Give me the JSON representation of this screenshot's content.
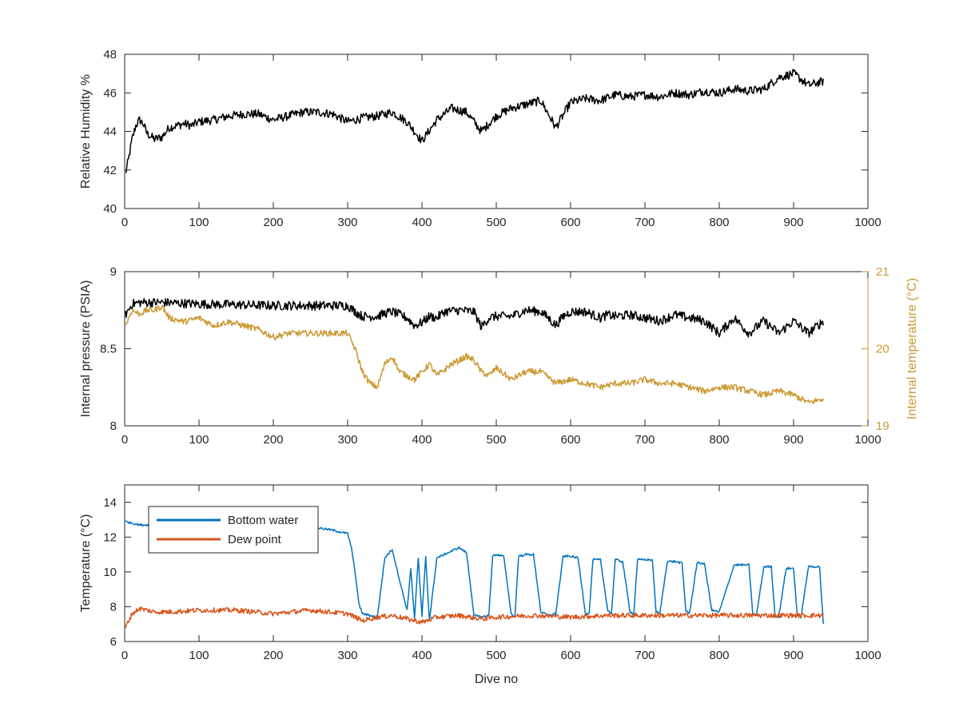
{
  "chart_data": [
    {
      "type": "line",
      "xlabel": "",
      "ylabel": "Relative Humidity %",
      "xlim": [
        0,
        1000
      ],
      "ylim": [
        40,
        48
      ],
      "xticks": [
        0,
        100,
        200,
        300,
        400,
        500,
        600,
        700,
        800,
        900,
        1000
      ],
      "yticks": [
        40,
        42,
        44,
        46,
        48
      ],
      "series": [
        {
          "color": "#000000",
          "x": [
            1,
            5,
            10,
            15,
            20,
            25,
            30,
            40,
            50,
            60,
            70,
            80,
            90,
            100,
            120,
            140,
            160,
            180,
            200,
            220,
            240,
            260,
            280,
            300,
            320,
            340,
            360,
            380,
            400,
            420,
            440,
            460,
            480,
            500,
            520,
            540,
            560,
            580,
            600,
            620,
            640,
            660,
            680,
            700,
            720,
            740,
            760,
            780,
            800,
            820,
            840,
            860,
            880,
            900,
            920,
            940
          ],
          "y": [
            41.8,
            42.5,
            43.6,
            44.3,
            44.6,
            44.4,
            43.9,
            43.6,
            43.7,
            44.2,
            44.3,
            44.4,
            44.3,
            44.5,
            44.6,
            44.8,
            44.9,
            44.9,
            44.6,
            44.8,
            45.0,
            45.0,
            44.9,
            44.5,
            44.7,
            44.8,
            45.0,
            44.5,
            43.5,
            44.6,
            45.2,
            45.0,
            44.0,
            44.8,
            45.2,
            45.4,
            45.6,
            44.2,
            45.5,
            45.7,
            45.6,
            45.9,
            45.8,
            45.9,
            45.8,
            46.0,
            45.9,
            46.1,
            46.0,
            46.2,
            46.1,
            46.2,
            46.8,
            47.0,
            46.4,
            46.6
          ],
          "noise": 0.45
        }
      ]
    },
    {
      "type": "line",
      "xlabel": "",
      "ylabel": "Internal pressure (PSIA)",
      "ylabel_right": "Internal temperature (°C)",
      "xlim": [
        0,
        1000
      ],
      "ylim": [
        8,
        9
      ],
      "ylim_right": [
        19,
        21
      ],
      "xticks": [
        0,
        100,
        200,
        300,
        400,
        500,
        600,
        700,
        800,
        900,
        1000
      ],
      "yticks": [
        8,
        8.5,
        9
      ],
      "yticks_right": [
        19,
        20,
        21
      ],
      "series": [
        {
          "axis": "left",
          "color": "#000000",
          "x": [
            1,
            10,
            20,
            50,
            100,
            200,
            300,
            310,
            320,
            330,
            340,
            350,
            360,
            370,
            380,
            390,
            400,
            410,
            420,
            430,
            450,
            470,
            480,
            490,
            500,
            520,
            540,
            560,
            570,
            580,
            590,
            600,
            620,
            640,
            650,
            660,
            680,
            700,
            720,
            740,
            760,
            780,
            800,
            820,
            840,
            860,
            880,
            900,
            920,
            940
          ],
          "y": [
            8.72,
            8.79,
            8.8,
            8.8,
            8.79,
            8.78,
            8.78,
            8.74,
            8.71,
            8.71,
            8.71,
            8.73,
            8.74,
            8.72,
            8.7,
            8.65,
            8.67,
            8.71,
            8.7,
            8.74,
            8.75,
            8.74,
            8.64,
            8.7,
            8.71,
            8.71,
            8.75,
            8.74,
            8.7,
            8.65,
            8.71,
            8.74,
            8.74,
            8.7,
            8.72,
            8.71,
            8.72,
            8.7,
            8.68,
            8.72,
            8.7,
            8.68,
            8.6,
            8.7,
            8.6,
            8.68,
            8.6,
            8.68,
            8.6,
            8.68
          ],
          "noise": 0.06
        },
        {
          "axis": "right",
          "color": "#CC9933",
          "x": [
            1,
            10,
            20,
            30,
            40,
            50,
            60,
            80,
            100,
            120,
            140,
            160,
            180,
            200,
            220,
            240,
            260,
            280,
            300,
            310,
            320,
            330,
            340,
            350,
            360,
            370,
            380,
            390,
            400,
            410,
            420,
            440,
            460,
            470,
            480,
            490,
            500,
            520,
            540,
            560,
            580,
            600,
            620,
            640,
            660,
            680,
            700,
            720,
            740,
            760,
            780,
            800,
            820,
            840,
            860,
            880,
            900,
            920,
            940
          ],
          "y": [
            20.3,
            20.5,
            20.45,
            20.5,
            20.5,
            20.55,
            20.4,
            20.35,
            20.4,
            20.3,
            20.35,
            20.3,
            20.25,
            20.15,
            20.2,
            20.2,
            20.2,
            20.2,
            20.2,
            20.0,
            19.7,
            19.55,
            19.5,
            19.8,
            19.9,
            19.7,
            19.65,
            19.6,
            19.7,
            19.8,
            19.65,
            19.8,
            19.9,
            19.85,
            19.7,
            19.65,
            19.75,
            19.6,
            19.7,
            19.7,
            19.55,
            19.6,
            19.55,
            19.5,
            19.55,
            19.55,
            19.6,
            19.55,
            19.55,
            19.5,
            19.45,
            19.5,
            19.5,
            19.45,
            19.4,
            19.45,
            19.4,
            19.3,
            19.35
          ],
          "noise": 0.08
        }
      ]
    },
    {
      "type": "line",
      "xlabel": "Dive no",
      "ylabel": "Temperature (°C)",
      "xlim": [
        0,
        1000
      ],
      "ylim": [
        6,
        15
      ],
      "xticks": [
        0,
        100,
        200,
        300,
        400,
        500,
        600,
        700,
        800,
        900,
        1000
      ],
      "yticks": [
        6,
        8,
        10,
        12,
        14
      ],
      "legend": {
        "position": "top-left",
        "entries": [
          "Bottom water",
          "Dew point"
        ]
      },
      "series": [
        {
          "name": "Bottom water",
          "color": "#0072BD",
          "x": [
            1,
            20,
            50,
            100,
            150,
            200,
            250,
            280,
            300,
            305,
            310,
            315,
            320,
            340,
            350,
            360,
            370,
            380,
            385,
            390,
            395,
            400,
            405,
            410,
            420,
            430,
            440,
            450,
            460,
            470,
            480,
            490,
            495,
            500,
            510,
            520,
            525,
            530,
            540,
            550,
            560,
            570,
            580,
            590,
            595,
            600,
            610,
            620,
            625,
            630,
            640,
            650,
            655,
            660,
            670,
            680,
            685,
            690,
            700,
            710,
            715,
            720,
            730,
            740,
            750,
            755,
            760,
            770,
            780,
            790,
            800,
            820,
            830,
            840,
            845,
            850,
            860,
            870,
            875,
            880,
            890,
            900,
            905,
            910,
            920,
            930,
            935,
            940
          ],
          "y": [
            12.9,
            12.7,
            12.7,
            12.8,
            12.6,
            12.6,
            12.6,
            12.4,
            12.2,
            11.4,
            10.0,
            8.2,
            7.6,
            7.4,
            10.8,
            11.3,
            9.5,
            7.8,
            10.2,
            7.3,
            10.8,
            7.4,
            10.9,
            7.2,
            10.8,
            11.0,
            11.2,
            11.4,
            11.1,
            7.5,
            7.4,
            7.5,
            10.9,
            11.0,
            10.9,
            7.6,
            7.4,
            10.9,
            11.0,
            11.0,
            7.7,
            7.5,
            7.6,
            10.9,
            10.9,
            10.9,
            10.8,
            7.6,
            7.6,
            10.7,
            10.7,
            7.8,
            7.6,
            10.7,
            10.6,
            7.7,
            7.6,
            10.7,
            10.7,
            10.7,
            7.7,
            7.6,
            10.6,
            10.6,
            10.5,
            7.8,
            7.6,
            10.5,
            10.5,
            7.8,
            7.7,
            10.4,
            10.4,
            10.4,
            7.6,
            7.5,
            10.3,
            10.3,
            7.5,
            7.4,
            10.2,
            10.2,
            7.5,
            7.4,
            10.3,
            10.3,
            10.3,
            7.0
          ],
          "noise": 0.12
        },
        {
          "name": "Dew point",
          "color": "#D95319",
          "x": [
            1,
            10,
            20,
            40,
            60,
            100,
            150,
            200,
            250,
            300,
            320,
            340,
            360,
            380,
            400,
            420,
            450,
            480,
            500,
            550,
            600,
            650,
            700,
            750,
            800,
            850,
            900,
            940
          ],
          "y": [
            6.8,
            7.6,
            7.9,
            7.7,
            7.7,
            7.8,
            7.8,
            7.6,
            7.8,
            7.6,
            7.2,
            7.4,
            7.5,
            7.3,
            7.1,
            7.4,
            7.5,
            7.3,
            7.4,
            7.5,
            7.4,
            7.5,
            7.5,
            7.5,
            7.5,
            7.5,
            7.5,
            7.5
          ],
          "noise": 0.28
        }
      ]
    }
  ]
}
